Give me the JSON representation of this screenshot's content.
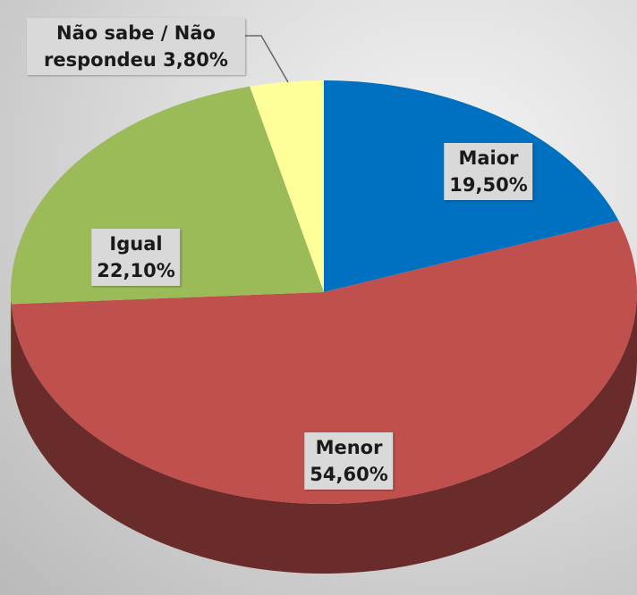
{
  "chart_data": {
    "type": "pie",
    "categories": [
      "Maior",
      "Menor",
      "Igual",
      "Não sabe / Não respondeu"
    ],
    "values": [
      19.5,
      54.6,
      22.1,
      3.8
    ],
    "value_labels": [
      "19,50%",
      "54,60%",
      "22,10%",
      "3,80%"
    ],
    "colors": [
      "#0070c0",
      "#c0504d",
      "#9bbb59",
      "#ffff99"
    ]
  }
}
